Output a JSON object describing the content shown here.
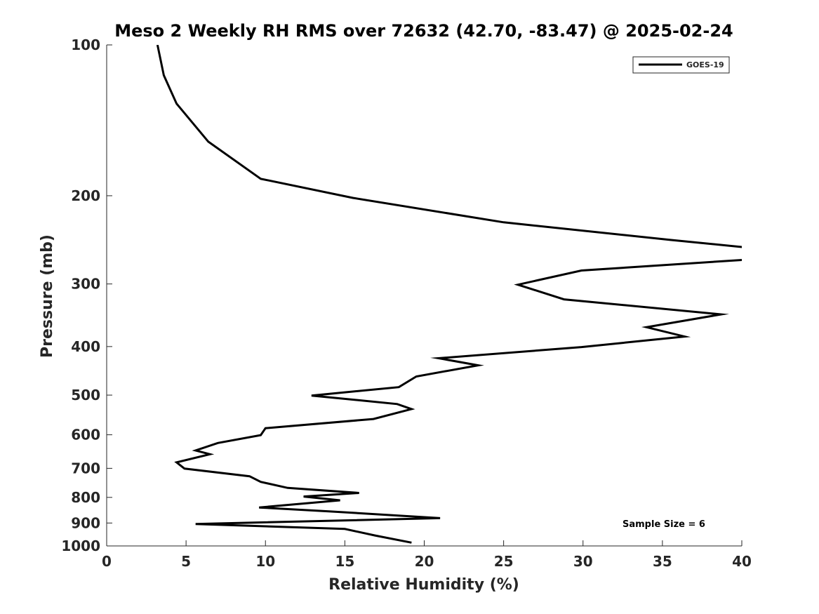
{
  "chart_data": {
    "type": "line",
    "title": "Meso 2 Weekly RH RMS over 72632 (42.70, -83.47) @ 2025-02-24",
    "xlabel": "Relative Humidity (%)",
    "ylabel": "Pressure (mb)",
    "xlim": [
      0,
      40
    ],
    "ylim": [
      100,
      1000
    ],
    "y_scale": "log",
    "y_reversed": true,
    "grid": false,
    "legend_position": "top-right",
    "x_ticks": [
      0,
      5,
      10,
      15,
      20,
      25,
      30,
      35,
      40
    ],
    "y_ticks": [
      100,
      200,
      300,
      400,
      500,
      600,
      700,
      800,
      900,
      1000
    ],
    "annotation": "Sample Size = 6",
    "series": [
      {
        "name": "GOES-19",
        "color": "#000000",
        "points": [
          [
            3.2,
            100
          ],
          [
            3.6,
            115
          ],
          [
            4.4,
            131
          ],
          [
            6.4,
            156
          ],
          [
            9.7,
            185
          ],
          [
            15.5,
            202
          ],
          [
            25.0,
            226
          ],
          [
            35.5,
            245
          ],
          [
            40.5,
            254
          ],
          [
            40.5,
            268
          ],
          [
            29.9,
            282
          ],
          [
            25.9,
            301
          ],
          [
            28.8,
            322
          ],
          [
            38.7,
            345
          ],
          [
            34.0,
            366
          ],
          [
            36.4,
            382
          ],
          [
            29.9,
            401
          ],
          [
            20.9,
            422
          ],
          [
            23.4,
            436
          ],
          [
            19.5,
            459
          ],
          [
            18.4,
            482
          ],
          [
            12.9,
            501
          ],
          [
            18.3,
            521
          ],
          [
            19.2,
            533
          ],
          [
            16.8,
            558
          ],
          [
            10.0,
            582
          ],
          [
            9.7,
            601
          ],
          [
            7.0,
            623
          ],
          [
            5.6,
            645
          ],
          [
            6.5,
            656
          ],
          [
            4.4,
            681
          ],
          [
            4.9,
            701
          ],
          [
            9.0,
            726
          ],
          [
            9.7,
            745
          ],
          [
            11.4,
            766
          ],
          [
            15.9,
            784
          ],
          [
            12.4,
            797
          ],
          [
            14.7,
            811
          ],
          [
            9.6,
            838
          ],
          [
            14.0,
            853
          ],
          [
            21.0,
            880
          ],
          [
            5.6,
            904
          ],
          [
            15.0,
            925
          ],
          [
            16.9,
            953
          ],
          [
            19.2,
            985
          ]
        ]
      }
    ]
  }
}
